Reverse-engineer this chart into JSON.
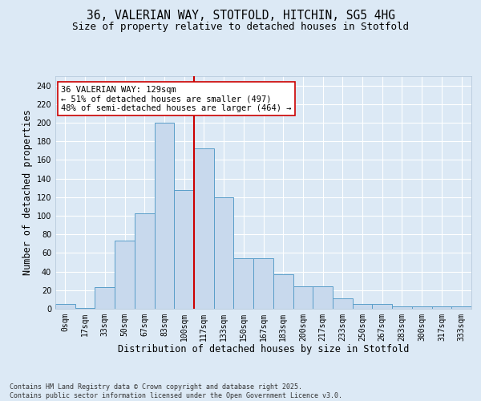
{
  "title_line1": "36, VALERIAN WAY, STOTFOLD, HITCHIN, SG5 4HG",
  "title_line2": "Size of property relative to detached houses in Stotfold",
  "xlabel": "Distribution of detached houses by size in Stotfold",
  "ylabel": "Number of detached properties",
  "bin_labels": [
    "0sqm",
    "17sqm",
    "33sqm",
    "50sqm",
    "67sqm",
    "83sqm",
    "100sqm",
    "117sqm",
    "133sqm",
    "150sqm",
    "167sqm",
    "183sqm",
    "200sqm",
    "217sqm",
    "233sqm",
    "250sqm",
    "267sqm",
    "283sqm",
    "300sqm",
    "317sqm",
    "333sqm"
  ],
  "bar_heights": [
    5,
    1,
    23,
    73,
    103,
    200,
    128,
    172,
    120,
    54,
    54,
    37,
    24,
    24,
    11,
    5,
    5,
    3,
    3,
    3,
    3
  ],
  "bar_color": "#c8d9ed",
  "bar_edge_color": "#5a9ec9",
  "vline_x": 7,
  "vline_color": "#cc0000",
  "annotation_text": "36 VALERIAN WAY: 129sqm\n← 51% of detached houses are smaller (497)\n48% of semi-detached houses are larger (464) →",
  "annotation_box_color": "#ffffff",
  "annotation_box_edge_color": "#cc0000",
  "annotation_fontsize": 7.5,
  "ylim": [
    0,
    250
  ],
  "yticks": [
    0,
    20,
    40,
    60,
    80,
    100,
    120,
    140,
    160,
    180,
    200,
    220,
    240
  ],
  "background_color": "#dce9f5",
  "footer_line1": "Contains HM Land Registry data © Crown copyright and database right 2025.",
  "footer_line2": "Contains public sector information licensed under the Open Government Licence v3.0.",
  "title_fontsize": 10.5,
  "subtitle_fontsize": 9,
  "axis_label_fontsize": 8.5,
  "tick_fontsize": 7
}
